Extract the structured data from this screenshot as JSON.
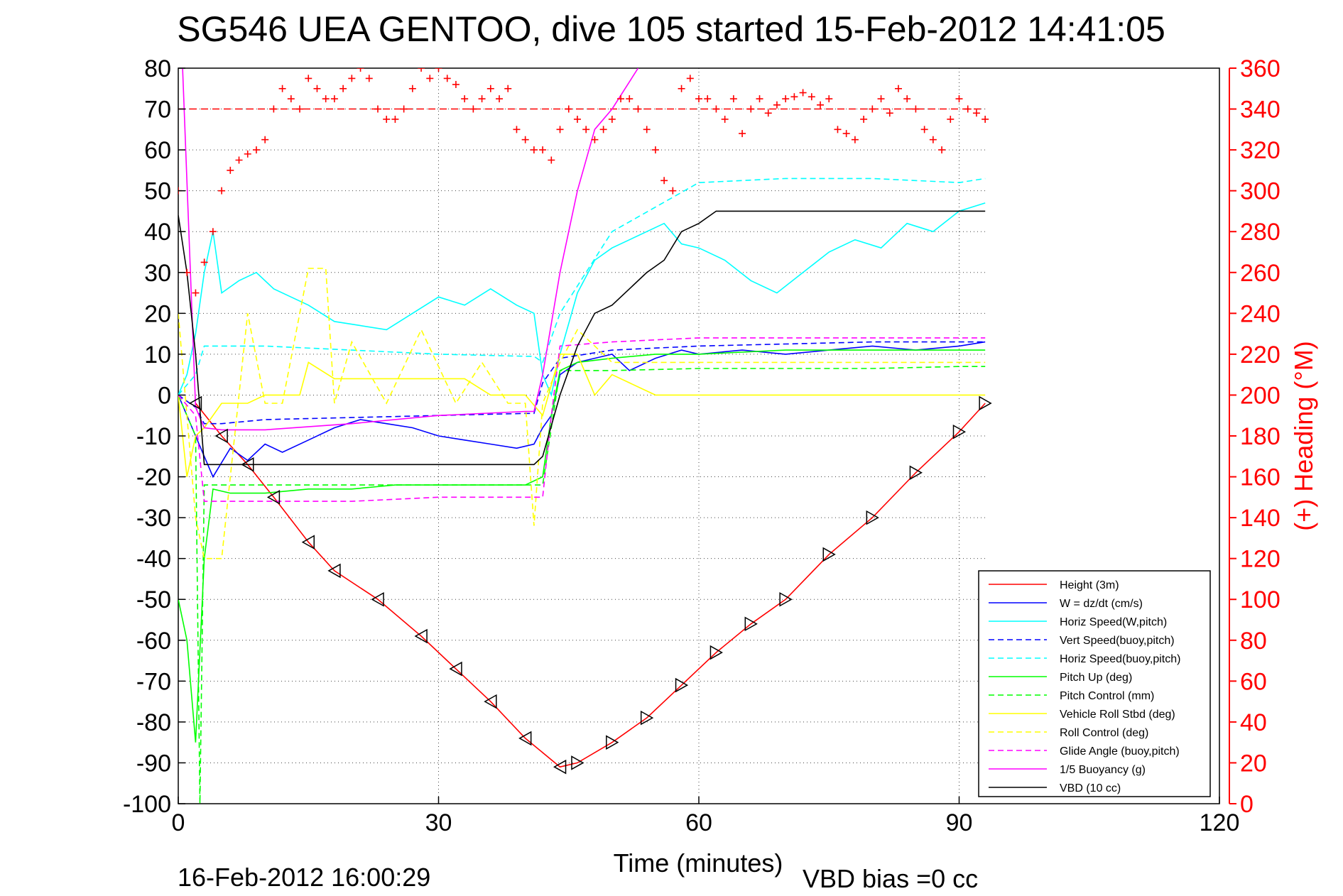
{
  "chart_data": {
    "type": "line",
    "title": "SG546 UEA GENTOO, dive 105 started 15-Feb-2012 14:41:05",
    "xlabel": "Time (minutes)",
    "ylabel": "",
    "y2label": "(+) Heading (°M)",
    "xlim": [
      0,
      120
    ],
    "ylim": [
      -100,
      80
    ],
    "y2lim": [
      0,
      360
    ],
    "xticks": [
      0,
      30,
      60,
      90,
      120
    ],
    "yticks": [
      80,
      70,
      60,
      50,
      40,
      30,
      20,
      10,
      0,
      -10,
      -20,
      -30,
      -40,
      -50,
      -60,
      -70,
      -80,
      -90,
      -100
    ],
    "y2ticks": [
      360,
      340,
      320,
      300,
      280,
      260,
      240,
      220,
      200,
      180,
      160,
      140,
      120,
      100,
      80,
      60,
      40,
      20,
      0
    ],
    "grid": "dotted",
    "legend_position": "bottom-right",
    "footer_left": "16-Feb-2012 16:00:29",
    "footer_right": "VBD bias =0 cc",
    "colors": {
      "red": "#ff0000",
      "blue": "#0000ff",
      "cyan": "#00ffff",
      "green": "#00ff00",
      "yellow": "#ffff00",
      "magenta": "#ff00ff",
      "black": "#000000"
    },
    "series": [
      {
        "name": "Height (3m)",
        "color": "#ff0000",
        "dash": "solid",
        "x": [
          2,
          5,
          8,
          11,
          15,
          18,
          23,
          28,
          32,
          36,
          40,
          44,
          46,
          50,
          54,
          58,
          62,
          66,
          70,
          75,
          80,
          85,
          90,
          93
        ],
        "y": [
          -2,
          -10,
          -17,
          -25,
          -36,
          -43,
          -50,
          -59,
          -67,
          -75,
          -84,
          -91,
          -90,
          -85,
          -79,
          -71,
          -63,
          -56,
          -50,
          -39,
          -30,
          -19,
          -9,
          -2
        ]
      },
      {
        "name": "W = dz/dt (cm/s)",
        "color": "#0000ff",
        "dash": "solid",
        "x": [
          0,
          1,
          2,
          3,
          4,
          6,
          8,
          10,
          12,
          15,
          18,
          21,
          24,
          27,
          30,
          33,
          36,
          39,
          41,
          42,
          43,
          44,
          46,
          48,
          50,
          52,
          55,
          58,
          60,
          65,
          70,
          75,
          80,
          85,
          90,
          93
        ],
        "y": [
          0,
          -5,
          -10,
          -15,
          -20,
          -13,
          -16,
          -12,
          -14,
          -11,
          -8,
          -6,
          -7,
          -8,
          -10,
          -11,
          -12,
          -13,
          -12,
          -8,
          -5,
          5,
          8,
          9,
          10,
          6,
          9,
          11,
          10,
          11,
          10,
          11,
          12,
          11,
          12,
          13
        ]
      },
      {
        "name": "Horiz Speed(W,pitch)",
        "color": "#00ffff",
        "dash": "solid",
        "x": [
          0,
          1,
          2,
          3,
          4,
          5,
          7,
          9,
          11,
          13,
          15,
          18,
          21,
          24,
          27,
          30,
          33,
          36,
          39,
          41,
          42,
          43,
          44,
          46,
          48,
          50,
          52,
          54,
          56,
          58,
          60,
          63,
          66,
          69,
          72,
          75,
          78,
          81,
          84,
          87,
          90,
          93
        ],
        "y": [
          0,
          5,
          15,
          30,
          40,
          25,
          28,
          30,
          26,
          24,
          22,
          18,
          17,
          16,
          20,
          24,
          22,
          26,
          22,
          20,
          5,
          0,
          10,
          25,
          33,
          36,
          38,
          40,
          42,
          37,
          36,
          33,
          28,
          25,
          30,
          35,
          38,
          36,
          42,
          40,
          45,
          47
        ]
      },
      {
        "name": "Vert Speed(buoy,pitch)",
        "color": "#0000ff",
        "dash": "dashed",
        "x": [
          0,
          2,
          3,
          5,
          10,
          20,
          30,
          40,
          41,
          42,
          44,
          50,
          60,
          70,
          80,
          90,
          93
        ],
        "y": [
          0,
          -3,
          -7,
          -7,
          -6,
          -5.5,
          -5,
          -4.5,
          -4.5,
          3,
          9,
          11,
          12,
          12.5,
          13,
          13,
          13
        ]
      },
      {
        "name": "Horiz Speed(buoy,pitch)",
        "color": "#00ffff",
        "dash": "dashed",
        "x": [
          0,
          2,
          3,
          10,
          20,
          30,
          40,
          41,
          42,
          44,
          50,
          60,
          70,
          80,
          90,
          93
        ],
        "y": [
          0,
          5,
          12,
          12,
          11,
          10,
          9.5,
          9.5,
          8,
          20,
          40,
          52,
          53,
          53,
          52,
          53
        ]
      },
      {
        "name": "Pitch Up (deg)",
        "color": "#00ff00",
        "dash": "solid",
        "x": [
          0,
          1,
          2,
          3,
          4,
          6,
          10,
          15,
          20,
          25,
          30,
          35,
          40,
          42,
          43,
          44,
          46,
          50,
          55,
          60,
          70,
          80,
          90,
          93
        ],
        "y": [
          -50,
          -60,
          -85,
          -40,
          -23,
          -24,
          -24,
          -23,
          -23,
          -22,
          -22,
          -22,
          -22,
          -20,
          -5,
          6,
          8,
          9,
          10,
          10,
          11,
          11,
          11,
          11
        ]
      },
      {
        "name": "Pitch Control (mm)",
        "color": "#00ff00",
        "dash": "dashed",
        "x": [
          0,
          2,
          2.5,
          3,
          10,
          20,
          30,
          40,
          42,
          43,
          44,
          50,
          60,
          70,
          80,
          90,
          93
        ],
        "y": [
          0,
          -10,
          -100,
          -22,
          -22,
          -22,
          -22,
          -22,
          -22,
          -8,
          6,
          6,
          6.5,
          6.5,
          6.5,
          7,
          7
        ]
      },
      {
        "name": "Vehicle Roll Stbd (deg)",
        "color": "#ffff00",
        "dash": "solid",
        "x": [
          0,
          1,
          2,
          3,
          5,
          8,
          10,
          14,
          15,
          18,
          20,
          24,
          28,
          30,
          33,
          36,
          40,
          42,
          44,
          46,
          48,
          50,
          55,
          60,
          70,
          80,
          90,
          93
        ],
        "y": [
          0,
          -20,
          -10,
          -8,
          -2,
          -2,
          0,
          0,
          8,
          4,
          4,
          4,
          4,
          4,
          4,
          0,
          0,
          -5,
          10,
          10,
          0,
          5,
          0,
          0,
          0,
          0,
          0,
          0
        ]
      },
      {
        "name": "Roll Control (deg)",
        "color": "#ffff00",
        "dash": "dashed",
        "x": [
          0,
          2,
          3,
          5,
          8,
          10,
          12,
          15,
          17,
          18,
          20,
          24,
          28,
          32,
          35,
          38,
          40,
          41,
          42,
          44,
          46,
          50,
          56,
          60,
          70,
          80,
          90,
          93
        ],
        "y": [
          20,
          -30,
          -40,
          -40,
          20,
          -2,
          -2,
          31,
          31,
          -2,
          13,
          -2,
          16,
          -2,
          8,
          -2,
          -2,
          -32,
          -2,
          8,
          16,
          8,
          8,
          8,
          8,
          8,
          8,
          8
        ]
      },
      {
        "name": "Glide Angle (buoy,pitch)",
        "color": "#ff00ff",
        "dash": "dashed",
        "x": [
          0,
          2,
          3,
          5,
          10,
          20,
          30,
          40,
          42,
          43,
          44,
          50,
          60,
          70,
          80,
          90,
          93
        ],
        "y": [
          0,
          -5,
          -26,
          -26,
          -26,
          -26,
          -25,
          -25,
          -25,
          -5,
          12,
          13,
          14,
          14,
          14,
          14,
          14
        ]
      },
      {
        "name": "1/5 Buoyancy (g)",
        "color": "#ff00ff",
        "dash": "solid",
        "x": [
          0.5,
          2,
          3,
          5,
          10,
          20,
          30,
          40,
          41,
          42,
          44,
          46,
          48,
          50,
          53
        ],
        "y": [
          80,
          -3,
          -8,
          -8.5,
          -8.5,
          -7,
          -5,
          -4,
          -4,
          5,
          30,
          50,
          65,
          70,
          80
        ]
      },
      {
        "name": "VBD (10 cc)",
        "color": "#000000",
        "dash": "solid",
        "x": [
          0,
          1,
          2,
          3,
          10,
          20,
          30,
          40,
          41,
          42,
          44,
          46,
          48,
          50,
          52,
          54,
          56,
          58,
          60,
          62,
          70,
          80,
          90,
          93
        ],
        "y": [
          44,
          30,
          10,
          -17,
          -17,
          -17,
          -17,
          -17,
          -17,
          -15,
          0,
          12,
          20,
          22,
          26,
          30,
          33,
          40,
          42,
          45,
          45,
          45,
          45,
          45
        ]
      }
    ],
    "heading": {
      "name": "(+) Heading (°M)",
      "color": "#ff0000",
      "marker": "+",
      "reference": 340,
      "x": [
        0,
        1,
        2,
        3,
        4,
        5,
        6,
        7,
        8,
        9,
        10,
        11,
        12,
        13,
        14,
        15,
        16,
        17,
        18,
        19,
        20,
        21,
        22,
        23,
        24,
        25,
        26,
        27,
        28,
        29,
        30,
        31,
        32,
        33,
        34,
        35,
        36,
        37,
        38,
        39,
        40,
        41,
        42,
        43,
        44,
        45,
        46,
        47,
        48,
        49,
        50,
        51,
        52,
        53,
        54,
        55,
        56,
        57,
        58,
        59,
        60,
        61,
        62,
        63,
        64,
        65,
        66,
        67,
        68,
        69,
        70,
        71,
        72,
        73,
        74,
        75,
        76,
        77,
        78,
        79,
        80,
        81,
        82,
        83,
        84,
        85,
        86,
        87,
        88,
        89,
        90,
        91,
        92,
        93
      ],
      "y": [
        300,
        260,
        250,
        265,
        280,
        300,
        310,
        315,
        318,
        320,
        325,
        340,
        350,
        345,
        340,
        355,
        350,
        345,
        345,
        350,
        355,
        360,
        355,
        340,
        335,
        335,
        340,
        350,
        360,
        355,
        360,
        355,
        352,
        345,
        340,
        345,
        350,
        345,
        350,
        330,
        325,
        320,
        320,
        315,
        330,
        340,
        335,
        330,
        325,
        330,
        335,
        345,
        345,
        340,
        330,
        320,
        305,
        300,
        350,
        355,
        345,
        345,
        340,
        335,
        345,
        328,
        340,
        345,
        338,
        342,
        345,
        346,
        348,
        346,
        342,
        345,
        330,
        328,
        325,
        335,
        340,
        345,
        338,
        350,
        345,
        340,
        330,
        325,
        320,
        335,
        345,
        340,
        338,
        335
      ]
    }
  }
}
